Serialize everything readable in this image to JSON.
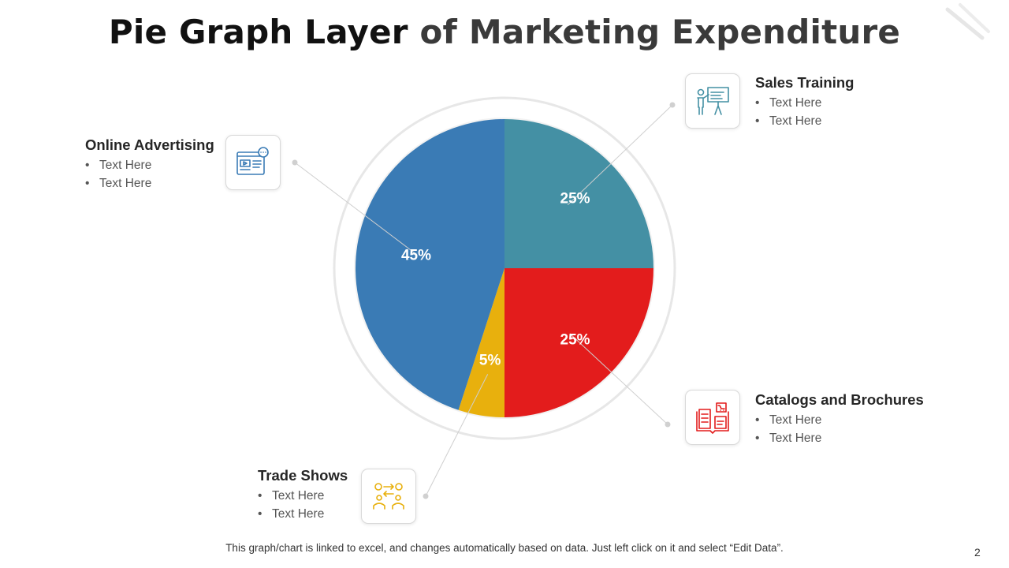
{
  "title_part1": "Pie Graph Layer",
  "title_part2": "of Marketing Expenditure",
  "chart_data": {
    "type": "pie",
    "slices": [
      {
        "label": "Sales Training",
        "value": 25,
        "display": "25%",
        "color": "#4490a4"
      },
      {
        "label": "Catalogs and Brochures",
        "value": 25,
        "display": "25%",
        "color": "#e31c1c"
      },
      {
        "label": "Trade Shows",
        "value": 5,
        "display": "5%",
        "color": "#e8b00d"
      },
      {
        "label": "Online Advertising",
        "value": 45,
        "display": "45%",
        "color": "#3a7bb5"
      }
    ],
    "start": "top",
    "direction": "clockwise"
  },
  "callouts": {
    "sales_training": {
      "heading": "Sales Training",
      "bullets": [
        "Text Here",
        "Text Here"
      ],
      "icon": "presentation-icon",
      "icon_color": "#4490a4"
    },
    "online_advertising": {
      "heading": "Online Advertising",
      "bullets": [
        "Text Here",
        "Text Here"
      ],
      "icon": "web-content-icon",
      "icon_color": "#3a7bb5"
    },
    "catalogs": {
      "heading": "Catalogs and Brochures",
      "bullets": [
        "Text Here",
        "Text Here"
      ],
      "icon": "catalog-book-icon",
      "icon_color": "#e31c1c"
    },
    "trade_shows": {
      "heading": "Trade Shows",
      "bullets": [
        "Text Here",
        "Text Here"
      ],
      "icon": "trade-exchange-icon",
      "icon_color": "#e8b00d"
    }
  },
  "bullet_char": "•",
  "footer": "This graph/chart is linked to excel, and changes automatically based on data. Just left click on it and select “Edit Data”.",
  "page_number": "2"
}
